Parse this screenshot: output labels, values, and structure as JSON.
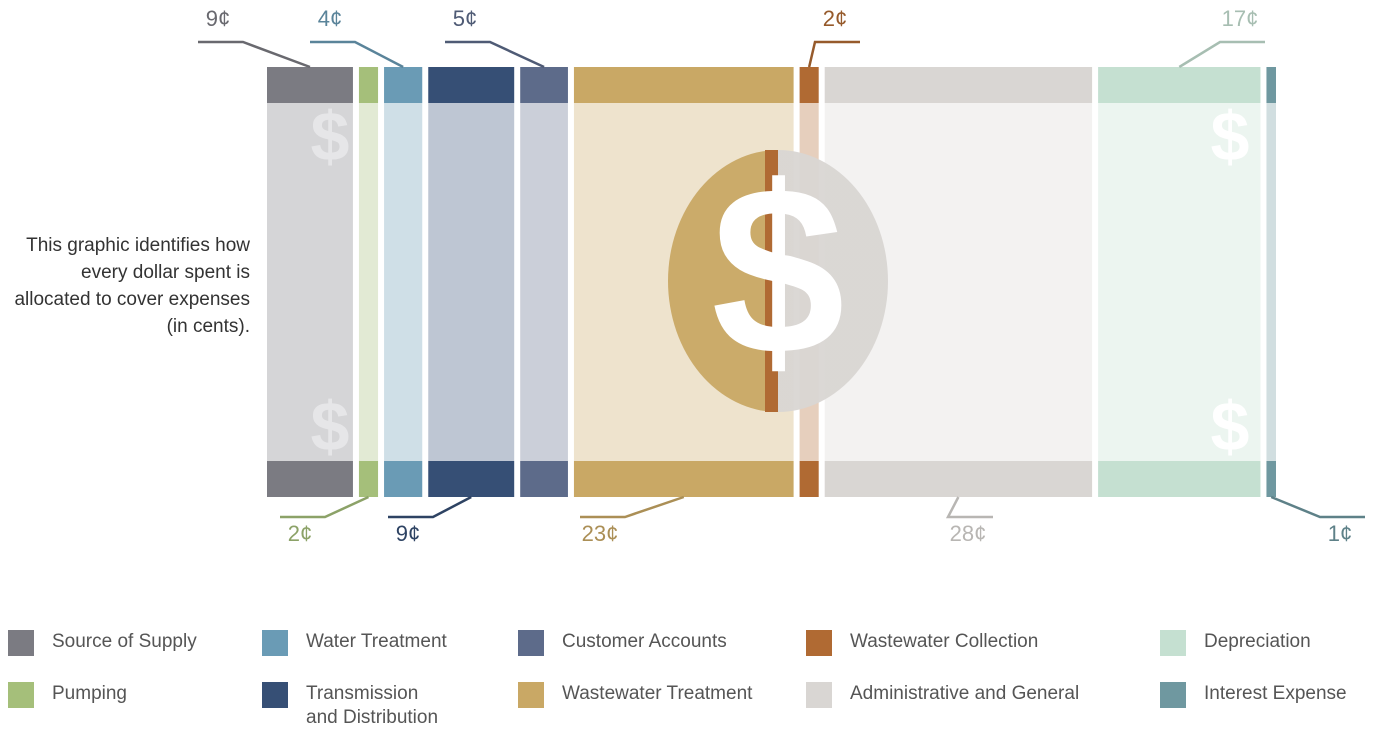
{
  "chart_data": {
    "type": "dollar-bill",
    "description": "This graphic identifies how every dollar spent is allocated to cover expenses (in cents).",
    "categories": [
      "Source of Supply",
      "Pumping",
      "Water Treatment",
      "Transmission and Distribution",
      "Customer Accounts",
      "Wastewater Treatment",
      "Wastewater Collection",
      "Administrative and General",
      "Depreciation",
      "Interest Expense"
    ],
    "values": [
      9,
      2,
      4,
      9,
      5,
      23,
      2,
      28,
      17,
      1
    ],
    "value_labels": [
      "9¢",
      "2¢",
      "4¢",
      "9¢",
      "5¢",
      "23¢",
      "2¢",
      "28¢",
      "17¢",
      "1¢"
    ],
    "colors": [
      "#7b7b82",
      "#a5bf7a",
      "#6a9bb5",
      "#364f75",
      "#5d6b8a",
      "#c9a865",
      "#b06a33",
      "#d9d6d3",
      "#c5e0d1",
      "#6f98a0"
    ]
  }
}
